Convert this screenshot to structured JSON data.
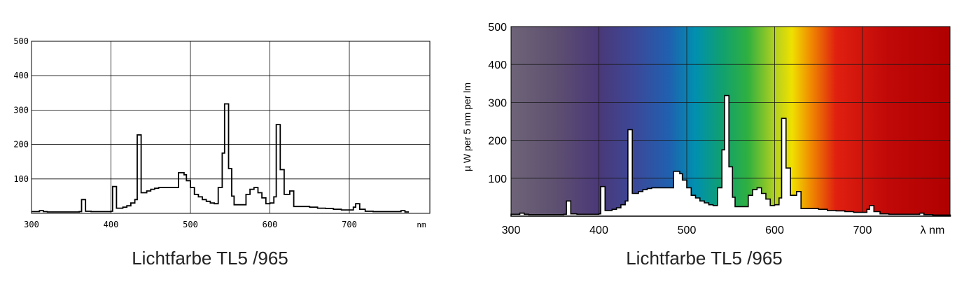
{
  "chart_data": [
    {
      "type": "line",
      "title": "Lichtfarbe TL5 /965",
      "xlabel": "nm",
      "ylabel": "",
      "xlim": [
        300,
        775
      ],
      "ylim": [
        0,
        500
      ],
      "x_ticks": [
        "300",
        "400",
        "500",
        "600",
        "700"
      ],
      "y_ticks": [
        "100",
        "200",
        "300",
        "400",
        "500"
      ],
      "grid": true,
      "background": "plain",
      "series": [
        {
          "values": [
            [
              300,
              5
            ],
            [
              305,
              5
            ],
            [
              310,
              8
            ],
            [
              315,
              5
            ],
            [
              320,
              4
            ],
            [
              330,
              4
            ],
            [
              340,
              4
            ],
            [
              350,
              4
            ],
            [
              360,
              5
            ],
            [
              363,
              40
            ],
            [
              368,
              6
            ],
            [
              375,
              5
            ],
            [
              390,
              5
            ],
            [
              400,
              6
            ],
            [
              402,
              78
            ],
            [
              407,
              15
            ],
            [
              415,
              18
            ],
            [
              420,
              22
            ],
            [
              425,
              30
            ],
            [
              430,
              40
            ],
            [
              433,
              228
            ],
            [
              438,
              60
            ],
            [
              445,
              65
            ],
            [
              450,
              70
            ],
            [
              455,
              73
            ],
            [
              460,
              75
            ],
            [
              470,
              75
            ],
            [
              480,
              75
            ],
            [
              485,
              118
            ],
            [
              492,
              112
            ],
            [
              495,
              95
            ],
            [
              500,
              75
            ],
            [
              505,
              55
            ],
            [
              510,
              48
            ],
            [
              515,
              40
            ],
            [
              520,
              35
            ],
            [
              525,
              30
            ],
            [
              530,
              28
            ],
            [
              535,
              75
            ],
            [
              540,
              175
            ],
            [
              543,
              318
            ],
            [
              548,
              130
            ],
            [
              552,
              50
            ],
            [
              555,
              25
            ],
            [
              565,
              25
            ],
            [
              570,
              55
            ],
            [
              575,
              70
            ],
            [
              580,
              75
            ],
            [
              585,
              60
            ],
            [
              590,
              45
            ],
            [
              595,
              28
            ],
            [
              600,
              30
            ],
            [
              605,
              48
            ],
            [
              608,
              258
            ],
            [
              613,
              127
            ],
            [
              618,
              55
            ],
            [
              625,
              65
            ],
            [
              630,
              20
            ],
            [
              640,
              20
            ],
            [
              650,
              18
            ],
            [
              660,
              15
            ],
            [
              670,
              14
            ],
            [
              680,
              12
            ],
            [
              690,
              10
            ],
            [
              700,
              10
            ],
            [
              705,
              18
            ],
            [
              708,
              28
            ],
            [
              713,
              12
            ],
            [
              720,
              6
            ],
            [
              730,
              5
            ],
            [
              740,
              5
            ],
            [
              750,
              5
            ],
            [
              760,
              5
            ],
            [
              765,
              8
            ],
            [
              770,
              4
            ],
            [
              775,
              4
            ]
          ]
        }
      ]
    },
    {
      "type": "area",
      "title": "Lichtfarbe TL5 /965",
      "xlabel": "λ nm",
      "ylabel": "µ W per 5 nm per lm",
      "xlim": [
        300,
        800
      ],
      "ylim": [
        0,
        500
      ],
      "x_ticks": [
        "300",
        "400",
        "500",
        "600",
        "700"
      ],
      "y_ticks": [
        "100",
        "200",
        "300",
        "400",
        "500"
      ],
      "grid": true,
      "background": "visible spectrum gradient",
      "colors": {
        "violet": "#6e6478",
        "indigo": "#4a3878",
        "blue": "#2060b0",
        "cyan": "#0090b0",
        "green": "#30b040",
        "yellow": "#f0e000",
        "orange": "#f09000",
        "red": "#e02010",
        "deep_red": "#b00000"
      },
      "series": [
        {
          "values": [
            [
              300,
              5
            ],
            [
              305,
              5
            ],
            [
              310,
              8
            ],
            [
              315,
              5
            ],
            [
              320,
              4
            ],
            [
              330,
              4
            ],
            [
              340,
              4
            ],
            [
              350,
              4
            ],
            [
              360,
              5
            ],
            [
              363,
              40
            ],
            [
              368,
              6
            ],
            [
              375,
              5
            ],
            [
              390,
              5
            ],
            [
              400,
              6
            ],
            [
              402,
              78
            ],
            [
              407,
              15
            ],
            [
              415,
              18
            ],
            [
              420,
              22
            ],
            [
              425,
              30
            ],
            [
              430,
              40
            ],
            [
              433,
              228
            ],
            [
              438,
              60
            ],
            [
              445,
              65
            ],
            [
              450,
              70
            ],
            [
              455,
              73
            ],
            [
              460,
              75
            ],
            [
              470,
              75
            ],
            [
              480,
              75
            ],
            [
              485,
              118
            ],
            [
              492,
              112
            ],
            [
              495,
              95
            ],
            [
              500,
              75
            ],
            [
              505,
              55
            ],
            [
              510,
              48
            ],
            [
              515,
              40
            ],
            [
              520,
              35
            ],
            [
              525,
              30
            ],
            [
              530,
              28
            ],
            [
              535,
              75
            ],
            [
              540,
              175
            ],
            [
              543,
              318
            ],
            [
              548,
              130
            ],
            [
              552,
              50
            ],
            [
              555,
              25
            ],
            [
              565,
              25
            ],
            [
              570,
              55
            ],
            [
              575,
              70
            ],
            [
              580,
              75
            ],
            [
              585,
              60
            ],
            [
              590,
              45
            ],
            [
              595,
              28
            ],
            [
              600,
              30
            ],
            [
              605,
              48
            ],
            [
              608,
              258
            ],
            [
              613,
              127
            ],
            [
              618,
              55
            ],
            [
              625,
              65
            ],
            [
              630,
              20
            ],
            [
              640,
              20
            ],
            [
              650,
              18
            ],
            [
              660,
              15
            ],
            [
              670,
              14
            ],
            [
              680,
              12
            ],
            [
              690,
              10
            ],
            [
              700,
              10
            ],
            [
              705,
              18
            ],
            [
              708,
              28
            ],
            [
              713,
              12
            ],
            [
              720,
              6
            ],
            [
              730,
              5
            ],
            [
              740,
              5
            ],
            [
              750,
              5
            ],
            [
              760,
              5
            ],
            [
              765,
              8
            ],
            [
              770,
              4
            ],
            [
              780,
              3
            ],
            [
              790,
              3
            ],
            [
              800,
              3
            ]
          ]
        }
      ]
    }
  ]
}
